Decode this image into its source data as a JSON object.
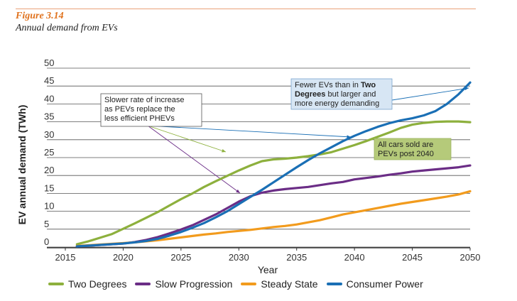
{
  "figure": {
    "label": "Figure 3.14",
    "title": "Annual demand from EVs"
  },
  "chart_data": {
    "type": "line",
    "xlabel": "Year",
    "ylabel": "EV annual demand (TWh)",
    "xlim": [
      2015,
      2050
    ],
    "ylim": [
      0,
      50
    ],
    "xticks": [
      2015,
      2020,
      2025,
      2030,
      2035,
      2040,
      2045,
      2050
    ],
    "yticks": [
      0,
      5,
      10,
      15,
      20,
      25,
      30,
      35,
      40,
      45,
      50
    ],
    "grid": true,
    "legend_position": "bottom",
    "series": [
      {
        "name": "Two Degrees",
        "color": "#8db03d",
        "x": [
          2016,
          2017,
          2018,
          2019,
          2020,
          2021,
          2022,
          2023,
          2024,
          2025,
          2026,
          2027,
          2028,
          2029,
          2030,
          2031,
          2032,
          2033,
          2034,
          2035,
          2036,
          2037,
          2038,
          2039,
          2040,
          2041,
          2042,
          2043,
          2044,
          2045,
          2046,
          2047,
          2048,
          2049,
          2050
        ],
        "y": [
          0.8,
          1.6,
          2.6,
          3.6,
          5.1,
          6.6,
          8.2,
          9.8,
          11.6,
          13.4,
          15.0,
          16.8,
          18.4,
          19.9,
          21.4,
          22.8,
          24.0,
          24.5,
          24.7,
          25.0,
          25.4,
          25.9,
          26.5,
          27.5,
          28.5,
          29.6,
          30.8,
          32.0,
          33.3,
          34.2,
          34.7,
          35.0,
          35.1,
          35.1,
          34.9
        ]
      },
      {
        "name": "Slow Progression",
        "color": "#6b2d86",
        "x": [
          2016,
          2017,
          2018,
          2019,
          2020,
          2021,
          2022,
          2023,
          2024,
          2025,
          2026,
          2027,
          2028,
          2029,
          2030,
          2031,
          2032,
          2033,
          2034,
          2035,
          2036,
          2037,
          2038,
          2039,
          2040,
          2041,
          2042,
          2043,
          2044,
          2045,
          2046,
          2047,
          2048,
          2049,
          2050
        ],
        "y": [
          0.2,
          0.4,
          0.6,
          0.8,
          1.0,
          1.4,
          2.0,
          2.8,
          3.8,
          4.9,
          6.1,
          7.6,
          9.1,
          10.9,
          12.7,
          14.2,
          15.2,
          15.8,
          16.2,
          16.5,
          16.8,
          17.3,
          17.8,
          18.2,
          18.9,
          19.3,
          19.7,
          20.2,
          20.6,
          21.1,
          21.4,
          21.7,
          22.0,
          22.3,
          22.8
        ]
      },
      {
        "name": "Steady State",
        "color": "#f29b1d",
        "x": [
          2016,
          2017,
          2018,
          2019,
          2020,
          2021,
          2022,
          2023,
          2024,
          2025,
          2026,
          2027,
          2028,
          2029,
          2030,
          2031,
          2032,
          2033,
          2034,
          2035,
          2036,
          2037,
          2038,
          2039,
          2040,
          2041,
          2042,
          2043,
          2044,
          2045,
          2046,
          2047,
          2048,
          2049,
          2050
        ],
        "y": [
          0.3,
          0.5,
          0.7,
          0.9,
          1.1,
          1.3,
          1.6,
          1.9,
          2.3,
          2.7,
          3.1,
          3.5,
          3.8,
          4.2,
          4.5,
          4.8,
          5.2,
          5.6,
          5.9,
          6.3,
          6.9,
          7.5,
          8.3,
          9.1,
          9.7,
          10.3,
          10.9,
          11.5,
          12.1,
          12.6,
          13.1,
          13.6,
          14.1,
          14.7,
          15.6
        ]
      },
      {
        "name": "Consumer Power",
        "color": "#1a6fb5",
        "x": [
          2016,
          2017,
          2018,
          2019,
          2020,
          2021,
          2022,
          2023,
          2024,
          2025,
          2026,
          2027,
          2028,
          2029,
          2030,
          2031,
          2032,
          2033,
          2034,
          2035,
          2036,
          2037,
          2038,
          2039,
          2040,
          2041,
          2042,
          2043,
          2044,
          2045,
          2046,
          2047,
          2048,
          2049,
          2050
        ],
        "y": [
          0.2,
          0.4,
          0.6,
          0.8,
          1.0,
          1.3,
          1.7,
          2.3,
          3.2,
          4.2,
          5.4,
          6.7,
          8.3,
          10.0,
          12.0,
          14.0,
          16.0,
          18.1,
          20.2,
          22.3,
          24.3,
          26.2,
          27.9,
          29.6,
          31.1,
          32.4,
          33.6,
          34.6,
          35.4,
          36.0,
          36.8,
          38.0,
          40.0,
          42.7,
          46.0
        ]
      }
    ],
    "annotations": [
      {
        "text": "Slower rate of increase as PEVs replace the less efficient PHEVs",
        "lines": [
          "Slower rate of increase",
          "as PEVs replace the",
          "less efficient PHEVs"
        ],
        "style": "outline"
      },
      {
        "text": "Fewer EVs than in Two Degrees but larger and more energy demanding",
        "lines": [
          [
            {
              "t": "Fewer EVs than in "
            },
            {
              "t": "Two",
              "b": true
            }
          ],
          [
            {
              "t": "Degrees",
              "b": true
            },
            {
              "t": " but larger and"
            }
          ],
          [
            {
              "t": "more energy demanding"
            }
          ]
        ],
        "style": "blue"
      },
      {
        "text": "All cars sold are PEVs post 2040",
        "lines": [
          "All cars sold are",
          "PEVs post 2040"
        ],
        "style": "green"
      }
    ]
  }
}
